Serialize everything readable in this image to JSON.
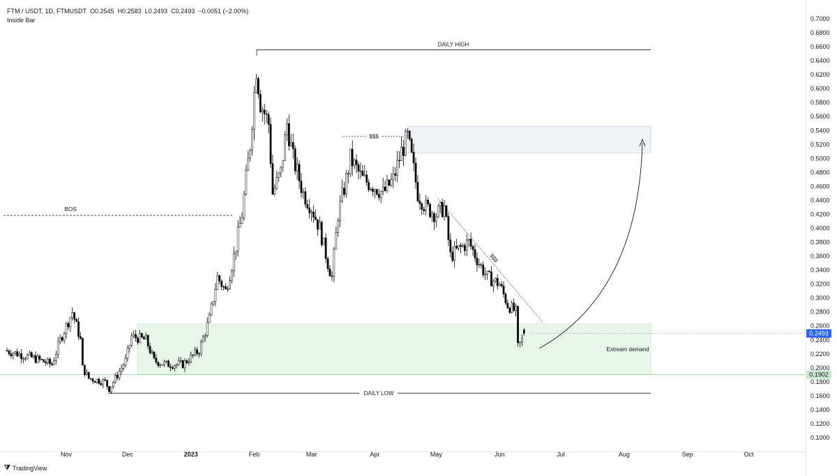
{
  "header": {
    "symbol": "FTM / USDT, 1D, FTMUSDT",
    "open": "O0.2545",
    "high": "H0.2583",
    "low": "L0.2493",
    "close": "C0.2493",
    "change": "−0.0051 (−2.00%)",
    "indicator": "Inside Bar"
  },
  "branding": {
    "name": "TradingView"
  },
  "colors": {
    "up": "#ffffff",
    "down": "#000000",
    "price_badge": "#2962ff",
    "green_badge": "#c8e6c9",
    "demand_zone": "#e8f5e9",
    "supply_zone": "#f0f3f5"
  },
  "chart_data": {
    "type": "candlestick",
    "title": "FTM / USDT 1D",
    "x_unit": "days since 2022-11-01",
    "ylim": [
      0.08,
      0.72
    ],
    "y_ticks": [
      0.1,
      0.12,
      0.14,
      0.16,
      0.18,
      0.2,
      0.22,
      0.24,
      0.26,
      0.28,
      0.3,
      0.32,
      0.34,
      0.36,
      0.38,
      0.4,
      0.42,
      0.44,
      0.46,
      0.48,
      0.5,
      0.52,
      0.54,
      0.56,
      0.58,
      0.6,
      0.62,
      0.64,
      0.66,
      0.68,
      0.7
    ],
    "x_ticks": [
      {
        "label": "Nov",
        "t": 0
      },
      {
        "label": "Dec",
        "t": 30
      },
      {
        "label": "2023",
        "t": 61
      },
      {
        "label": "Feb",
        "t": 92
      },
      {
        "label": "Mar",
        "t": 120
      },
      {
        "label": "Apr",
        "t": 151
      },
      {
        "label": "May",
        "t": 181
      },
      {
        "label": "Jun",
        "t": 212
      },
      {
        "label": "Jul",
        "t": 242
      },
      {
        "label": "Aug",
        "t": 273
      },
      {
        "label": "Sep",
        "t": 304
      },
      {
        "label": "Oct",
        "t": 334
      }
    ],
    "approx_closes": [
      [
        -30,
        0.225
      ],
      [
        -17,
        0.215
      ],
      [
        -7,
        0.205
      ],
      [
        -3,
        0.24
      ],
      [
        3,
        0.28
      ],
      [
        7,
        0.24
      ],
      [
        8,
        0.2
      ],
      [
        11,
        0.185
      ],
      [
        19,
        0.18
      ],
      [
        21,
        0.17
      ],
      [
        29,
        0.21
      ],
      [
        32,
        0.245
      ],
      [
        39,
        0.24
      ],
      [
        43,
        0.21
      ],
      [
        49,
        0.205
      ],
      [
        57,
        0.205
      ],
      [
        65,
        0.225
      ],
      [
        70,
        0.27
      ],
      [
        74,
        0.33
      ],
      [
        78,
        0.31
      ],
      [
        82,
        0.36
      ],
      [
        86,
        0.42
      ],
      [
        90,
        0.52
      ],
      [
        93,
        0.63
      ],
      [
        95,
        0.58
      ],
      [
        99,
        0.55
      ],
      [
        101,
        0.45
      ],
      [
        105,
        0.48
      ],
      [
        108,
        0.55
      ],
      [
        111,
        0.5
      ],
      [
        116,
        0.45
      ],
      [
        120,
        0.43
      ],
      [
        124,
        0.4
      ],
      [
        128,
        0.35
      ],
      [
        130,
        0.33
      ],
      [
        133,
        0.42
      ],
      [
        137,
        0.47
      ],
      [
        139,
        0.5
      ],
      [
        145,
        0.47
      ],
      [
        151,
        0.46
      ],
      [
        155,
        0.45
      ],
      [
        160,
        0.47
      ],
      [
        164,
        0.51
      ],
      [
        167,
        0.53
      ],
      [
        169,
        0.5
      ],
      [
        172,
        0.45
      ],
      [
        176,
        0.43
      ],
      [
        181,
        0.42
      ],
      [
        185,
        0.43
      ],
      [
        188,
        0.36
      ],
      [
        192,
        0.37
      ],
      [
        197,
        0.38
      ],
      [
        202,
        0.35
      ],
      [
        206,
        0.33
      ],
      [
        212,
        0.32
      ],
      [
        216,
        0.29
      ],
      [
        220,
        0.28
      ],
      [
        221,
        0.23
      ],
      [
        223,
        0.24
      ],
      [
        224,
        0.2493
      ]
    ],
    "last_price": "0.2493",
    "marked_price": "0.1902",
    "annotations": {
      "daily_high": {
        "label": "DAILY HIGH",
        "price": 0.6555
      },
      "daily_low": {
        "label": "DAILY LOW",
        "price": 0.1637
      },
      "bos": {
        "label": "BOS",
        "price": 0.4185
      },
      "liquidity_top": {
        "label": "$$$",
        "price": 0.532
      },
      "liquidity_trend": {
        "label": "$$$"
      },
      "supply_zone": {
        "top": 0.546,
        "bottom": 0.508
      },
      "demand_zone": {
        "label": "Extream demand",
        "top": 0.263,
        "bottom": 0.191
      }
    }
  }
}
